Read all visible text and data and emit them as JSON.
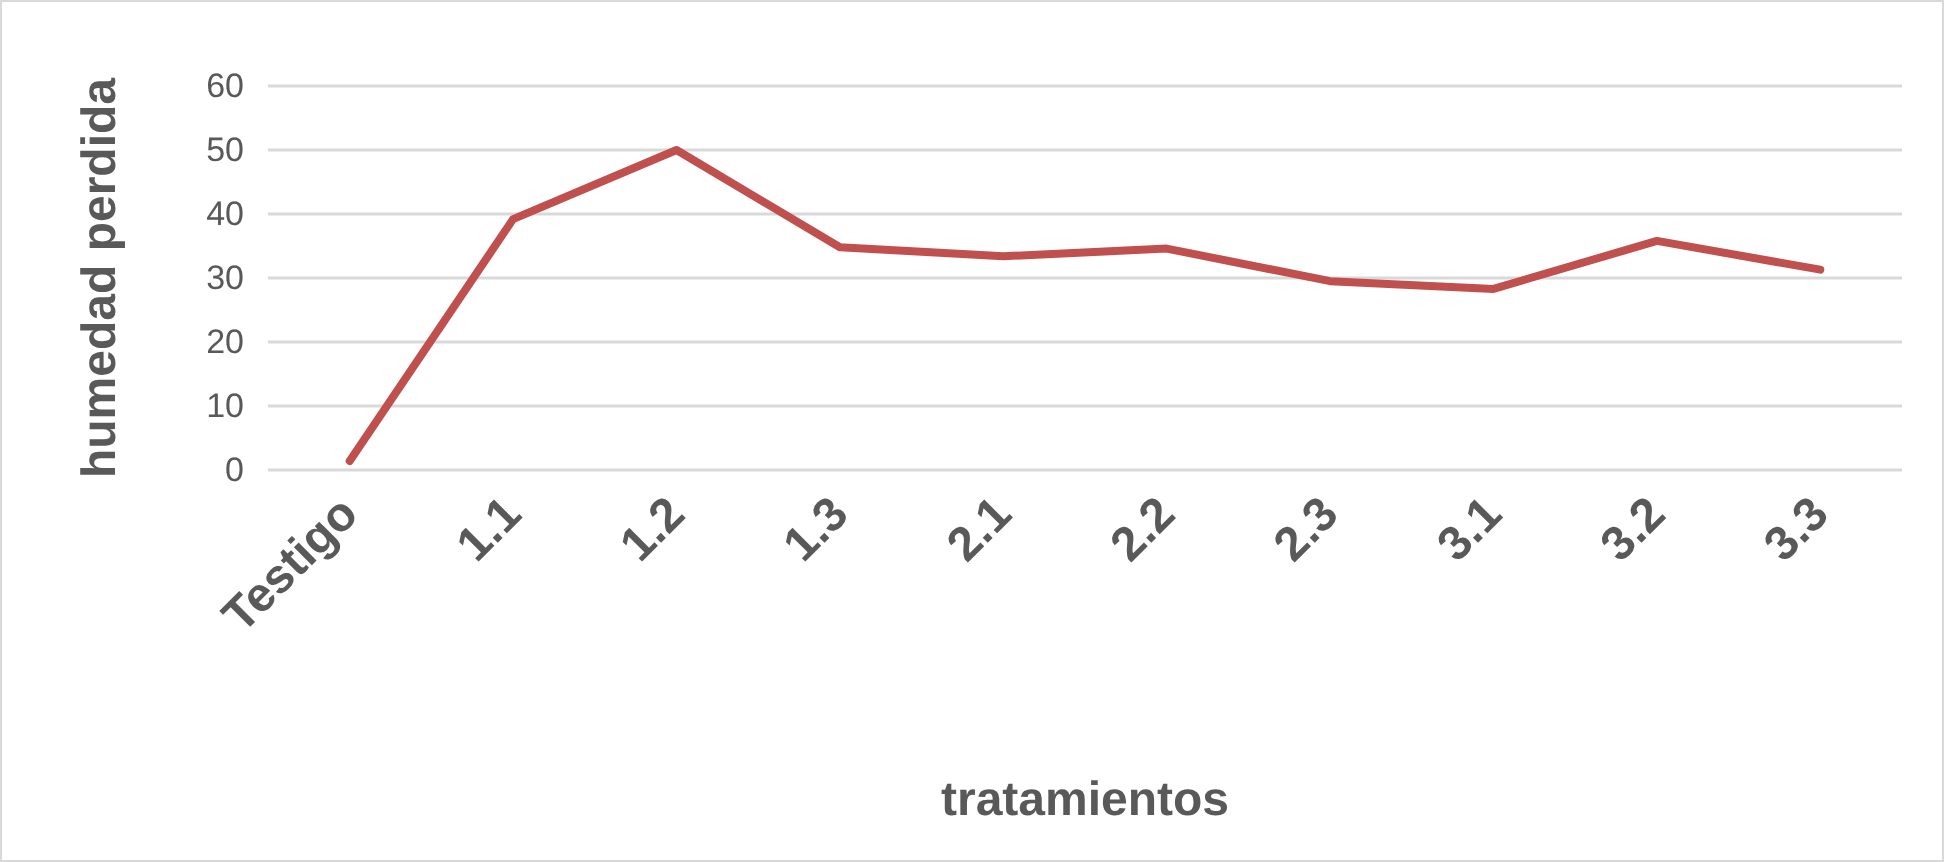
{
  "chart_data": {
    "type": "line",
    "xlabel": "tratamientos",
    "ylabel": "humedad perdida",
    "categories": [
      "Testigo",
      "1.1",
      "1.2",
      "1.3",
      "2.1",
      "2.2",
      "2.3",
      "3.1",
      "3.2",
      "3.3"
    ],
    "series": [
      {
        "color": "#c0504d",
        "values": [
          1.4,
          39.2,
          50,
          34.8,
          33.4,
          34.6,
          29.5,
          28.3,
          35.8,
          31.3
        ]
      }
    ],
    "ylim": [
      0,
      60
    ],
    "yticks": [
      0,
      10,
      20,
      30,
      40,
      50,
      60
    ],
    "grid": "y",
    "marker": "none",
    "line_style": "solid"
  }
}
